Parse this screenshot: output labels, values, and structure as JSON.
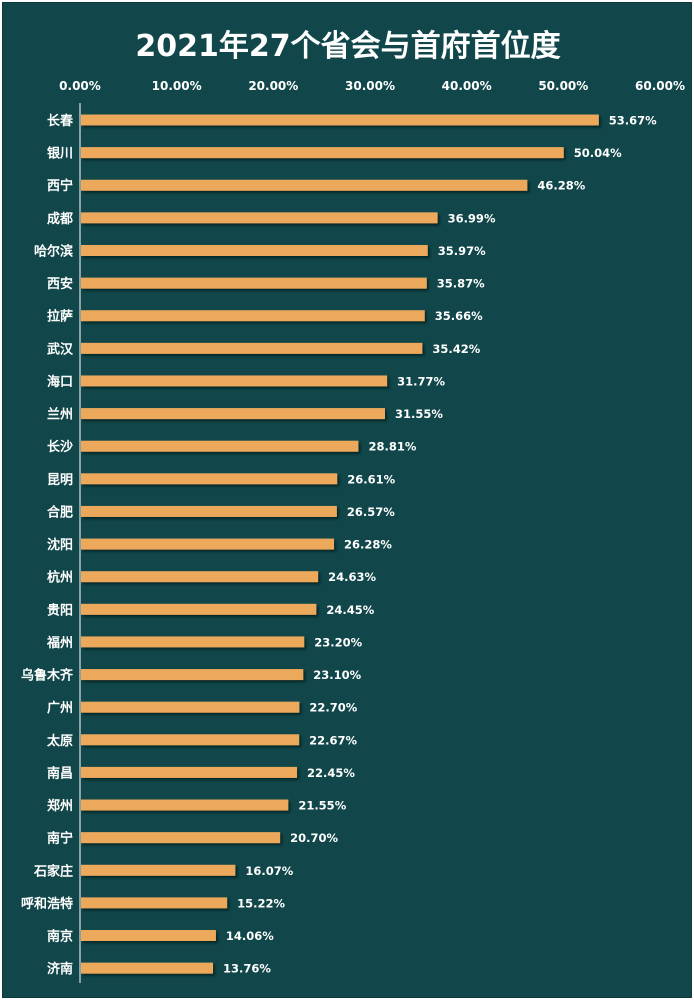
{
  "chart_data": {
    "type": "bar",
    "orientation": "horizontal",
    "title": "2021年27个省会与首府首位度",
    "xlabel": "",
    "ylabel": "",
    "xlim": [
      0,
      60
    ],
    "xticks": [
      "0.00%",
      "10.00%",
      "20.00%",
      "30.00%",
      "40.00%",
      "50.00%",
      "60.00%"
    ],
    "tick_position": "top",
    "grid": false,
    "legend": "none",
    "categories": [
      "长春",
      "银川",
      "西宁",
      "成都",
      "哈尔滨",
      "西安",
      "拉萨",
      "武汉",
      "海口",
      "兰州",
      "长沙",
      "昆明",
      "合肥",
      "沈阳",
      "杭州",
      "贵阳",
      "福州",
      "乌鲁木齐",
      "广州",
      "太原",
      "南昌",
      "郑州",
      "南宁",
      "石家庄",
      "呼和浩特",
      "南京",
      "济南"
    ],
    "values": [
      53.67,
      50.04,
      46.28,
      36.99,
      35.97,
      35.87,
      35.66,
      35.42,
      31.77,
      31.55,
      28.81,
      26.61,
      26.57,
      26.28,
      24.63,
      24.45,
      23.2,
      23.1,
      22.7,
      22.67,
      22.45,
      21.55,
      20.7,
      16.07,
      15.22,
      14.06,
      13.76
    ],
    "value_labels": [
      "53.67%",
      "50.04%",
      "46.28%",
      "36.99%",
      "35.97%",
      "35.87%",
      "35.66%",
      "35.42%",
      "31.77%",
      "31.55%",
      "28.81%",
      "26.61%",
      "26.57%",
      "26.28%",
      "24.63%",
      "24.45%",
      "23.20%",
      "23.10%",
      "22.70%",
      "22.67%",
      "22.45%",
      "21.55%",
      "20.70%",
      "16.07%",
      "15.22%",
      "14.06%",
      "13.76%"
    ]
  },
  "colors": {
    "background": "#11474a",
    "bar": "#eca95c",
    "bar_shadow": "#0a2a2c",
    "text": "#ffffff",
    "axis": "#ffffff"
  }
}
